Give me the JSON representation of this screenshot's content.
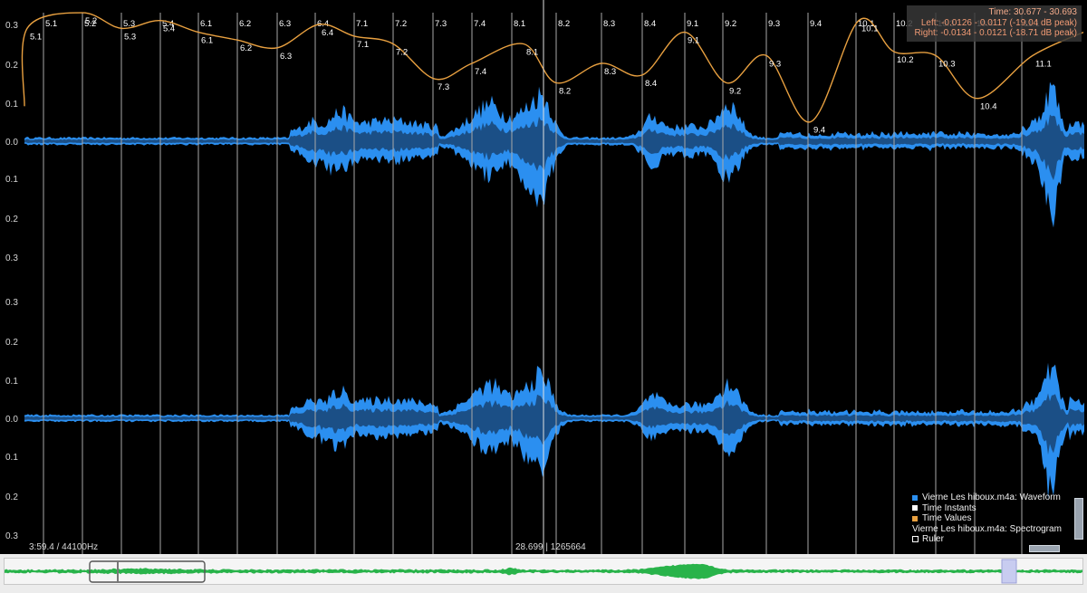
{
  "colors": {
    "background": "#000000",
    "waveform": "#2b8ff0",
    "waveform_dark": "#1b4f86",
    "time_values_curve": "#e8a040",
    "instant_line": "#a8a8a8",
    "overview_wave": "#29b34a",
    "info_text": "#f09a74"
  },
  "info_box": {
    "time": "Time: 30.677 - 30.693",
    "left": "Left: -0.0126 - 0.0117 (-19.04 dB peak)",
    "right": "Right: -0.0134 - 0.0121 (-18.71 dB peak)"
  },
  "axis": {
    "top_channel": [
      "0.3",
      "0.2",
      "0.1",
      "0.0",
      "0.1",
      "0.2",
      "0.3"
    ],
    "bottom_channel": [
      "0.3",
      "0.2",
      "0.1",
      "0.0",
      "0.1",
      "0.2",
      "0.3"
    ]
  },
  "time_instants": [
    "5.1",
    "5.2",
    "5.3",
    "5.4",
    "6.1",
    "6.2",
    "6.3",
    "6.4",
    "7.1",
    "7.2",
    "7.3",
    "7.4",
    "8.1",
    "8.2",
    "8.3",
    "8.4",
    "9.1",
    "9.2",
    "9.3",
    "9.4",
    "10.1",
    "10.2",
    "10.3",
    "10.4",
    "11.1"
  ],
  "time_values": [
    {
      "label": "5.1",
      "value": 0.29
    },
    {
      "label": "5.2",
      "value": 0.33
    },
    {
      "label": "5.3",
      "value": 0.29
    },
    {
      "label": "5.4",
      "value": 0.31
    },
    {
      "label": "6.1",
      "value": 0.28
    },
    {
      "label": "6.2",
      "value": 0.26
    },
    {
      "label": "6.3",
      "value": 0.24
    },
    {
      "label": "6.4",
      "value": 0.3
    },
    {
      "label": "7.1",
      "value": 0.27
    },
    {
      "label": "7.2",
      "value": 0.25
    },
    {
      "label": "7.3",
      "value": 0.16
    },
    {
      "label": "7.4",
      "value": 0.2
    },
    {
      "label": "8.1",
      "value": 0.25
    },
    {
      "label": "8.2",
      "value": 0.15
    },
    {
      "label": "8.3",
      "value": 0.2
    },
    {
      "label": "8.4",
      "value": 0.17
    },
    {
      "label": "9.1",
      "value": 0.28
    },
    {
      "label": "9.2",
      "value": 0.15
    },
    {
      "label": "9.3",
      "value": 0.22
    },
    {
      "label": "9.4",
      "value": 0.05
    },
    {
      "label": "10.1",
      "value": 0.31
    },
    {
      "label": "10.2",
      "value": 0.23
    },
    {
      "label": "10.3",
      "value": 0.22
    },
    {
      "label": "10.4",
      "value": 0.11
    },
    {
      "label": "11.1",
      "value": 0.22
    }
  ],
  "legend": [
    {
      "label": "Vierne Les hiboux.m4a: Waveform",
      "color": "#2b8ff0"
    },
    {
      "label": "Time Instants",
      "color": "#ffffff"
    },
    {
      "label": "Time Values",
      "color": "#e8a040"
    },
    {
      "label": "Vierne Les hiboux.m4a: Spectrogram",
      "color": ""
    },
    {
      "label": "Ruler",
      "color": "ruler"
    }
  ],
  "bottom": {
    "duration": "3:59.4 / 44100Hz",
    "cursor": "28.699 | 1265664"
  }
}
